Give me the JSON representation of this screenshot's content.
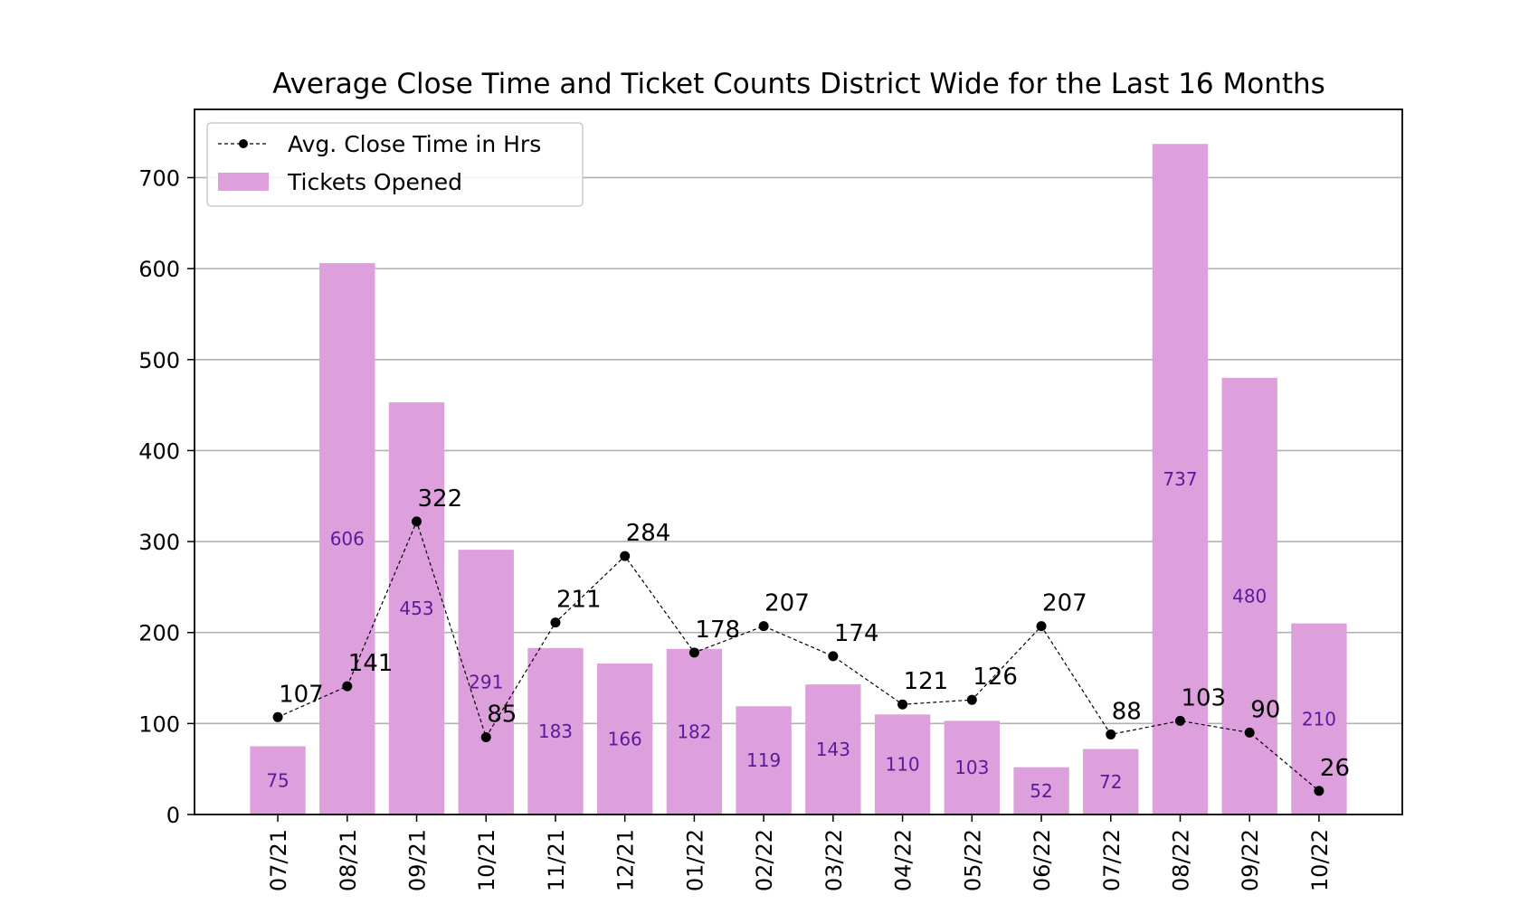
{
  "chart_data": {
    "type": "bar",
    "title": "Average Close Time and Ticket Counts District Wide for the Last 16 Months",
    "categories": [
      "07/21",
      "08/21",
      "09/21",
      "10/21",
      "11/21",
      "12/21",
      "01/22",
      "02/22",
      "03/22",
      "04/22",
      "05/22",
      "06/22",
      "07/22",
      "08/22",
      "09/22",
      "10/22"
    ],
    "ylim": [
      0,
      775
    ],
    "yticks": [
      0,
      100,
      200,
      300,
      400,
      500,
      600,
      700
    ],
    "grid": true,
    "legend_position": "upper-left",
    "series": [
      {
        "name": "Tickets Opened",
        "kind": "bar",
        "color": "#dda0dd",
        "label_color": "#5a1a9a",
        "values": [
          75,
          606,
          453,
          291,
          183,
          166,
          182,
          119,
          143,
          110,
          103,
          52,
          72,
          737,
          480,
          210
        ]
      },
      {
        "name": "Avg. Close Time in Hrs",
        "kind": "line",
        "color": "#000000",
        "style": "dashed",
        "marker": "circle",
        "values": [
          107,
          141,
          322,
          85,
          211,
          284,
          178,
          207,
          174,
          121,
          126,
          207,
          88,
          103,
          90,
          26
        ]
      }
    ]
  }
}
